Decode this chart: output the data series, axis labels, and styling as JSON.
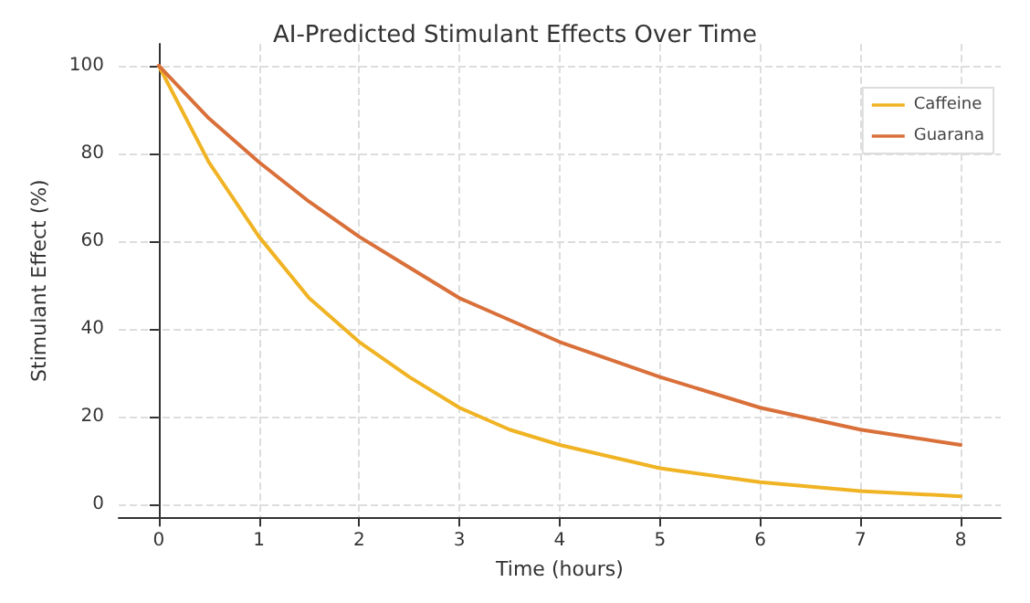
{
  "chart_data": {
    "type": "line",
    "title": "AI-Predicted Stimulant Effects Over Time",
    "xlabel": "Time (hours)",
    "ylabel": "Stimulant Effect (%)",
    "x": [
      0,
      0.5,
      1,
      1.5,
      2,
      2.5,
      3,
      3.5,
      4,
      5,
      6,
      7,
      8
    ],
    "series": [
      {
        "name": "Caffeine",
        "color": "#f0b323",
        "values": [
          100,
          78,
          61,
          47,
          37,
          29,
          22,
          17,
          13.5,
          8.2,
          5,
          3,
          1.8
        ]
      },
      {
        "name": "Guarana",
        "color": "#d9703a",
        "values": [
          100,
          88,
          78,
          69,
          61,
          54,
          47,
          42,
          37,
          29,
          22,
          17,
          13.5
        ]
      }
    ],
    "xlim": [
      -0.4,
      8.4
    ],
    "xticks": [
      0,
      1,
      2,
      3,
      4,
      5,
      6,
      7,
      8
    ],
    "ylim": [
      -3,
      105
    ],
    "yticks": [
      0,
      20,
      40,
      60,
      80,
      100
    ],
    "grid": true,
    "legend": "top right",
    "marker": "none",
    "line_style": "solid"
  }
}
